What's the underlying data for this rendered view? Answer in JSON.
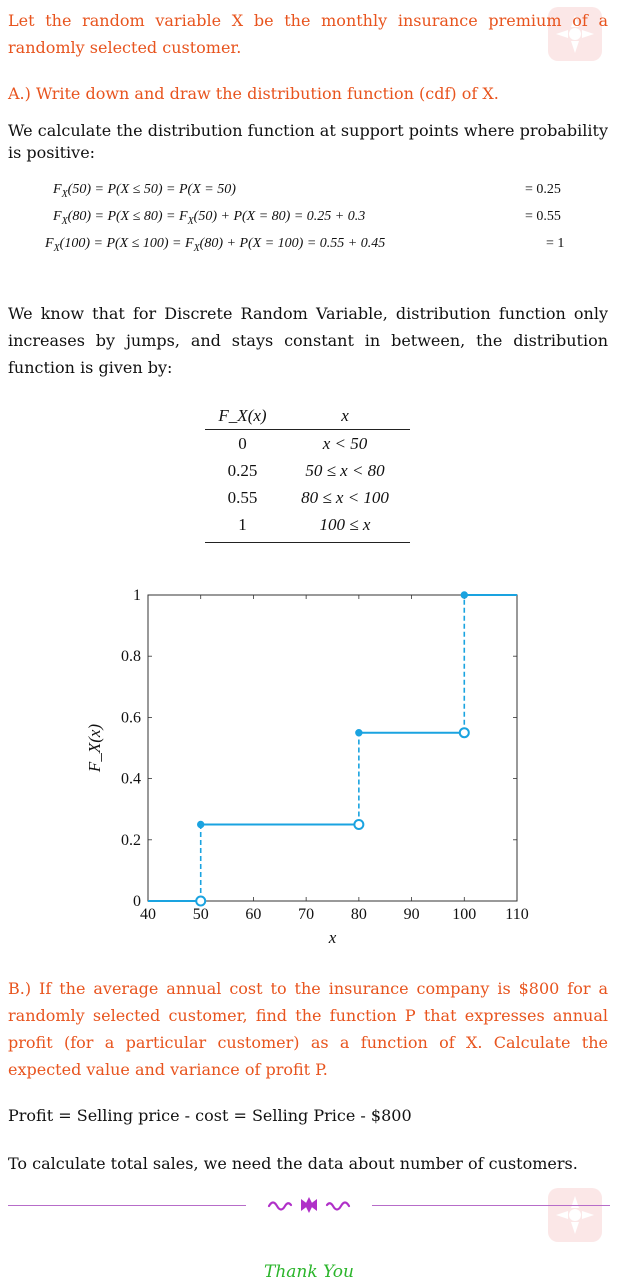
{
  "intro": "Let the random variable X be the monthly insurance premium of a randomly selected customer.",
  "part_a": {
    "heading": "A.) Write down and draw the distribution function (cdf) of X.",
    "calc_text": "We calculate the distribution function at support points where probability is positive:",
    "equations": [
      {
        "lhs": "F",
        "sub": "X",
        "arg": "(50) = P(X ≤ 50) = P(X = 50)",
        "rhs": "= 0.25"
      },
      {
        "lhs": "F",
        "sub": "X",
        "arg": "(80) = P(X ≤ 80) = F",
        "sub2": "X",
        "arg2": "(50) + P(X = 80) = 0.25 + 0.3",
        "rhs": "= 0.55"
      },
      {
        "lhs": "F",
        "sub": "X",
        "arg": "(100) = P(X ≤ 100) = F",
        "sub2": "X",
        "arg2": "(80) + P(X = 100) = 0.55 + 0.45",
        "rhs": "= 1"
      }
    ],
    "discrete_text": "We know that for Discrete Random Variable, distribution function only increases by jumps, and stays constant in between, the distribution function is given by:",
    "table": {
      "headers": [
        "F_X(x)",
        "x"
      ],
      "rows": [
        [
          "0",
          "x < 50"
        ],
        [
          "0.25",
          "50 ≤ x < 80"
        ],
        [
          "0.55",
          "80 ≤ x < 100"
        ],
        [
          "1",
          "100 ≤ x"
        ]
      ]
    }
  },
  "chart_data": {
    "type": "line",
    "xlabel": "x",
    "ylabel": "F_X(x)",
    "xlim": [
      40,
      110
    ],
    "ylim": [
      0,
      1
    ],
    "xticks": [
      40,
      50,
      60,
      70,
      80,
      90,
      100,
      110
    ],
    "yticks": [
      0,
      0.2,
      0.4,
      0.6,
      0.8,
      1
    ],
    "ytick_labels": [
      "0",
      "0.2",
      "0.4",
      "0.6",
      "0.8",
      "1"
    ],
    "steps": [
      {
        "x0": 40,
        "x1": 50,
        "y": 0
      },
      {
        "x0": 50,
        "x1": 80,
        "y": 0.25
      },
      {
        "x0": 80,
        "x1": 100,
        "y": 0.55
      },
      {
        "x0": 100,
        "x1": 110,
        "y": 1
      }
    ],
    "jumps": [
      {
        "x": 50,
        "from": 0,
        "to": 0.25
      },
      {
        "x": 80,
        "from": 0.25,
        "to": 0.55
      },
      {
        "x": 100,
        "from": 0.55,
        "to": 1
      }
    ],
    "closed_points": [
      [
        50,
        0.25
      ],
      [
        80,
        0.55
      ],
      [
        100,
        1
      ]
    ],
    "open_points": [
      [
        50,
        0
      ],
      [
        80,
        0.25
      ],
      [
        100,
        0.55
      ]
    ],
    "color": "#1aa3e0"
  },
  "part_b": {
    "heading": "B.) If the average annual cost to the insurance company is $800 for a randomly selected customer, find the function P that expresses annual profit (for a particular customer) as a function of X. Calculate the expected value and variance of profit P.",
    "profit_text": "Profit = Selling price - cost = Selling Price - $800",
    "sales_text": "To calculate total sales, we need the data about number of customers."
  },
  "footer": {
    "thanks": "Thank You"
  },
  "colors": {
    "accent_orange": "#e8541e",
    "plot_blue": "#1aa3e0",
    "divider_purple": "#b76cc9",
    "thanks_green": "#2bb52b"
  }
}
